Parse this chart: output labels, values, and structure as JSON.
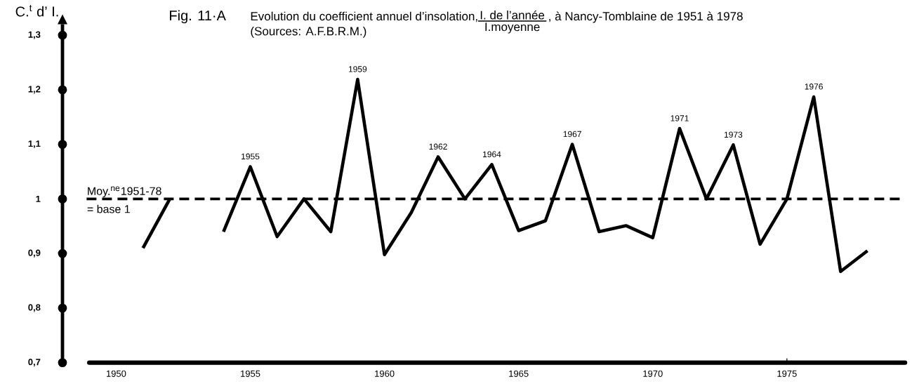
{
  "chart_data": {
    "type": "line",
    "title": "Fig. 11·A",
    "subtitle": "Evolution du coefficient annuel d’insolation,",
    "ylabel": "C.$^{t}$ d’ I.",
    "annotations": [
      "I. de l’année",
      "I.moyenne",
      ", à Nancy-Tomblaine de 1951 à 1978",
      "(Sources: A.F.B.R.M.)",
      "= base 1",
      {
        "text": "1955",
        "x": 1955,
        "y": 1.059
      },
      {
        "text": "1959",
        "x": 1959,
        "y": 1.219
      },
      {
        "text": "1962",
        "x": 1962,
        "y": 1.077
      },
      {
        "text": "1964",
        "x": 1964,
        "y": 1.063
      },
      {
        "text": "1967",
        "x": 1967,
        "y": 1.1
      },
      {
        "text": "1971",
        "x": 1971,
        "y": 1.129
      },
      {
        "text": "1973",
        "x": 1973,
        "y": 1.099
      },
      {
        "text": "1976",
        "x": 1976,
        "y": 1.187
      }
    ],
    "x": [
      1951,
      1952,
      1953,
      1954,
      1955,
      1956,
      1957,
      1958,
      1959,
      1960,
      1961,
      1962,
      1963,
      1964,
      1965,
      1966,
      1967,
      1968,
      1969,
      1970,
      1971,
      1972,
      1973,
      1974,
      1975,
      1976,
      1977,
      1978
    ],
    "values": [
      0.91,
      1.0,
      null,
      0.94,
      1.059,
      0.931,
      1.0,
      0.94,
      1.219,
      0.898,
      0.975,
      1.077,
      1.0,
      1.063,
      0.942,
      0.96,
      1.1,
      0.94,
      0.951,
      0.929,
      1.129,
      1.0,
      1.099,
      0.917,
      1.0,
      1.187,
      0.867,
      0.905
    ],
    "color": "#000000",
    "line_style": "solid",
    "marker": "none",
    "ref_lines": [
      {
        "axis": "y",
        "value": 1,
        "label": "Moy.$^{ne}$1951-78",
        "line_style": "dashed",
        "color": "#000000"
      }
    ],
    "xlim": [
      1948,
      1979.4
    ],
    "ylim": [
      0.7,
      1.32
    ],
    "xticks": [
      1950,
      1955,
      1960,
      1965,
      1970,
      1975
    ],
    "yticks": [
      {
        "value": 0.7,
        "label": "0,7"
      },
      {
        "value": 0.8,
        "label": "0,8"
      },
      {
        "value": 0.9,
        "label": "0,9"
      },
      1,
      {
        "value": 1.1,
        "label": "1,1"
      },
      {
        "value": 1.2,
        "label": "1,2"
      },
      {
        "value": 1.3,
        "label": "1,3"
      }
    ]
  }
}
